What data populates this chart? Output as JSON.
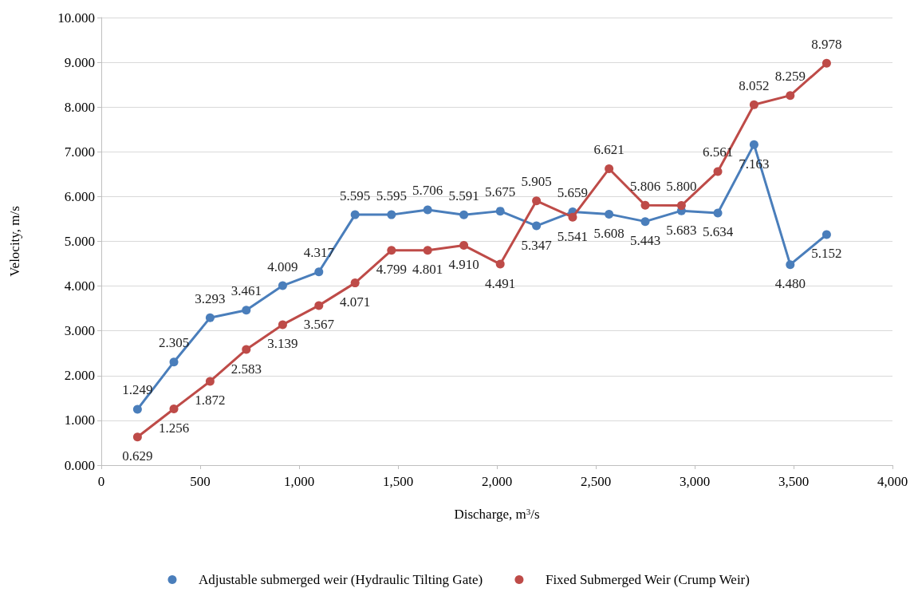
{
  "chart_data": {
    "type": "line",
    "xlabel": "Discharge, m$^{3}$/s",
    "ylabel": "Velocity, m/s",
    "x": [
      183,
      367,
      550,
      733,
      917,
      1100,
      1283,
      1467,
      1650,
      1833,
      2017,
      2200,
      2383,
      2567,
      2750,
      2933,
      3117,
      3300,
      3483,
      3667
    ],
    "series": [
      {
        "name": "Adjustable submerged weir (Hydraulic Tilting Gate)",
        "color": "#4a7ebb",
        "values": [
          1.249,
          2.305,
          3.293,
          3.461,
          4.009,
          4.317,
          5.595,
          5.595,
          5.706,
          5.591,
          5.675,
          5.347,
          5.659,
          5.608,
          5.443,
          5.683,
          5.634,
          7.163,
          4.48,
          5.152
        ],
        "value_labels": [
          "1.249",
          "2.305",
          "3.293",
          "3.461",
          "4.009",
          "4.317",
          "5.595",
          "5.595",
          "5.706",
          "5.591",
          "5.675",
          "5.347",
          "5.659",
          "5.608",
          "5.443",
          "5.683",
          "5.634",
          "7.163",
          "4.480",
          "5.152"
        ]
      },
      {
        "name": "Fixed Submerged Weir (Crump Weir)",
        "color": "#be4b48",
        "values": [
          0.629,
          1.256,
          1.872,
          2.583,
          3.139,
          3.567,
          4.071,
          4.799,
          4.801,
          4.91,
          4.491,
          5.905,
          5.541,
          6.621,
          5.806,
          5.8,
          6.561,
          8.052,
          8.259,
          8.978
        ],
        "value_labels": [
          "0.629",
          "1.256",
          "1.872",
          "2.583",
          "3.139",
          "3.567",
          "4.071",
          "4.799",
          "4.801",
          "4.910",
          "4.491",
          "5.905",
          "5.541",
          "6.621",
          "5.806",
          "5.800",
          "6.561",
          "8.052",
          "8.259",
          "8.978"
        ]
      }
    ],
    "xlim": [
      0,
      4000
    ],
    "xticks": [
      0,
      500,
      {
        "value": 1000,
        "label": "1,000"
      },
      {
        "value": 1500,
        "label": "1,500"
      },
      {
        "value": 2000,
        "label": "2,000"
      },
      {
        "value": 2500,
        "label": "2,500"
      },
      {
        "value": 3000,
        "label": "3,000"
      },
      {
        "value": 3500,
        "label": "3,500"
      },
      {
        "value": 4000,
        "label": "4,000"
      }
    ],
    "ylim": [
      0,
      10
    ],
    "yticks": [
      {
        "value": 0,
        "label": "0.000"
      },
      {
        "value": 1,
        "label": "1.000"
      },
      {
        "value": 2,
        "label": "2.000"
      },
      {
        "value": 3,
        "label": "3.000"
      },
      {
        "value": 4,
        "label": "4.000"
      },
      {
        "value": 5,
        "label": "5.000"
      },
      {
        "value": 6,
        "label": "6.000"
      },
      {
        "value": 7,
        "label": "7.000"
      },
      {
        "value": 8,
        "label": "8.000"
      },
      {
        "value": 9,
        "label": "9.000"
      },
      {
        "value": 10,
        "label": "10.000"
      }
    ],
    "grid": "y",
    "legend": "bottom",
    "marker": "circle",
    "line_style": "solid"
  }
}
